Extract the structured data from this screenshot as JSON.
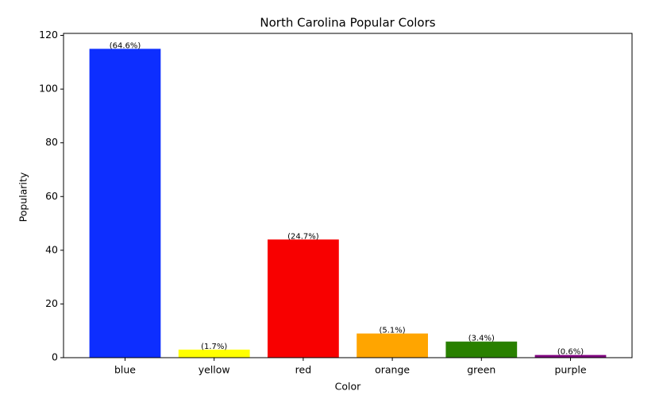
{
  "chart_data": {
    "type": "bar",
    "title": "North Carolina Popular Colors",
    "x_label": "Color",
    "y_label": "Popularity",
    "categories": [
      "blue",
      "yellow",
      "red",
      "orange",
      "green",
      "purple"
    ],
    "values": [
      115,
      3,
      44,
      9,
      6,
      1
    ],
    "bar_labels": [
      "(64.6%)",
      "(1.7%)",
      "(24.7%)",
      "(5.1%)",
      "(3.4%)",
      "(0.6%)"
    ],
    "colors": [
      "#0d2eff",
      "#ffff00",
      "#f80000",
      "#ffa500",
      "#298000",
      "#800080"
    ],
    "ylim": [
      0,
      120.75
    ],
    "yticks": [
      0,
      20,
      40,
      60,
      80,
      100,
      120
    ],
    "grid": false
  }
}
